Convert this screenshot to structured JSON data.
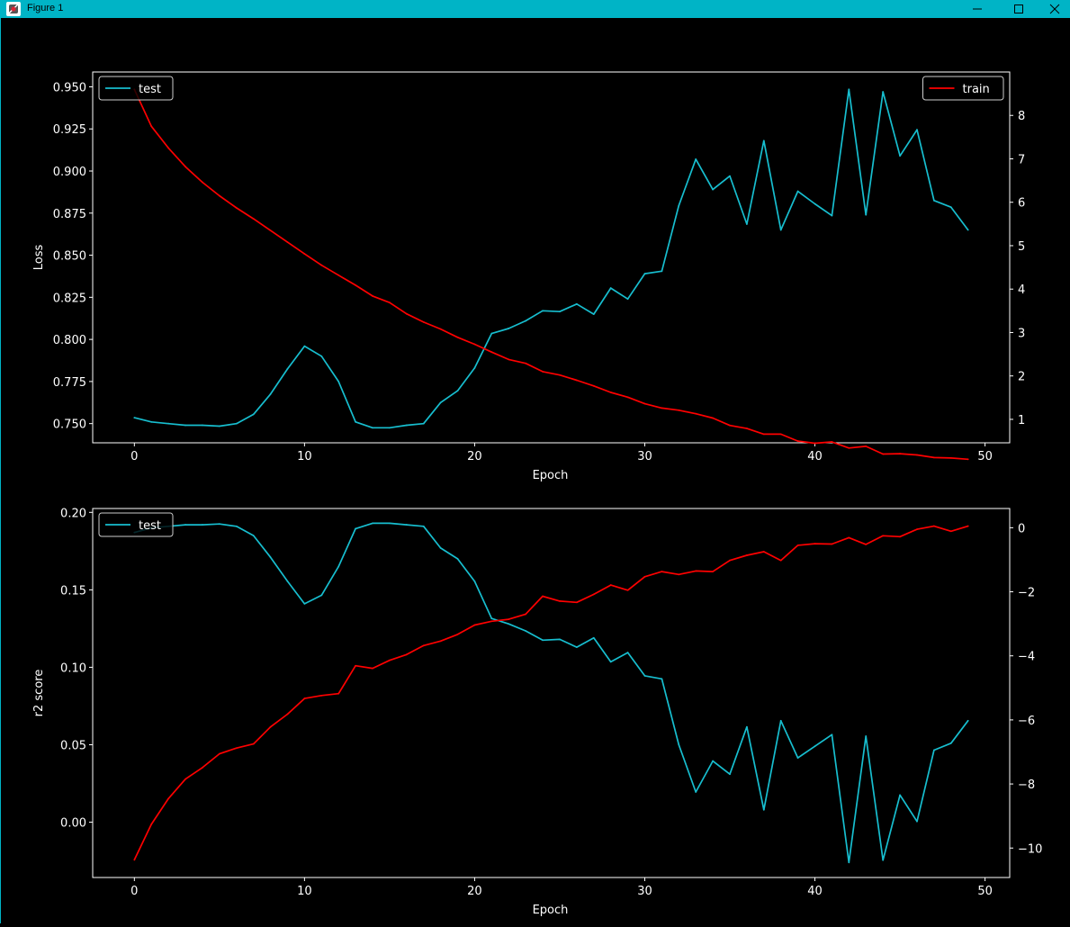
{
  "window": {
    "title": "Figure 1",
    "minimize_icon": "minimize-icon",
    "maximize_icon": "maximize-icon",
    "close_icon": "close-icon"
  },
  "colors": {
    "background": "#000000",
    "test": "#17becf",
    "train": "#ff0000",
    "titlebar": "#00b4c6"
  },
  "chart_data": [
    {
      "type": "line",
      "xlabel": "Epoch",
      "ylabel": "Loss",
      "xlim": [
        -2.45,
        51.45
      ],
      "x_ticks": [
        0,
        10,
        20,
        30,
        40,
        50
      ],
      "x_tick_labels": [
        "0",
        "10",
        "20",
        "30",
        "40",
        "50"
      ],
      "left_axis": {
        "ylim": [
          0.7386,
          0.9588
        ],
        "ticks": [
          0.75,
          0.775,
          0.8,
          0.825,
          0.85,
          0.875,
          0.9,
          0.925,
          0.95
        ],
        "tick_labels": [
          "0.750",
          "0.775",
          "0.800",
          "0.825",
          "0.850",
          "0.875",
          "0.900",
          "0.925",
          "0.950"
        ]
      },
      "right_axis": {
        "ylim": [
          0.46,
          9.0
        ],
        "ticks": [
          1,
          2,
          3,
          4,
          5,
          6,
          7,
          8
        ],
        "tick_labels": [
          "1",
          "2",
          "3",
          "4",
          "5",
          "6",
          "7",
          "8"
        ]
      },
      "series": [
        {
          "name": "test",
          "axis": "left",
          "color": "#17becf",
          "legend": "upper left",
          "x": [
            0,
            1,
            2,
            3,
            4,
            5,
            6,
            7,
            8,
            9,
            10,
            11,
            12,
            13,
            14,
            15,
            16,
            17,
            18,
            19,
            20,
            21,
            22,
            23,
            24,
            25,
            26,
            27,
            28,
            29,
            30,
            31,
            32,
            33,
            34,
            35,
            36,
            37,
            38,
            39,
            40,
            41,
            42,
            43,
            44,
            45,
            46,
            47,
            48,
            49
          ],
          "y": [
            0.7535,
            0.751,
            0.75,
            0.749,
            0.749,
            0.7485,
            0.75,
            0.7555,
            0.7675,
            0.7825,
            0.796,
            0.79,
            0.775,
            0.751,
            0.7475,
            0.7475,
            0.749,
            0.75,
            0.7625,
            0.7695,
            0.783,
            0.8035,
            0.8065,
            0.811,
            0.817,
            0.8165,
            0.821,
            0.815,
            0.8305,
            0.824,
            0.839,
            0.8405,
            0.8795,
            0.907,
            0.889,
            0.897,
            0.8685,
            0.918,
            0.865,
            0.888,
            0.8805,
            0.8735,
            0.9485,
            0.874,
            0.947,
            0.909,
            0.9245,
            0.8825,
            0.8785,
            0.865
          ]
        },
        {
          "name": "train",
          "axis": "right",
          "color": "#ff0000",
          "legend": "upper right",
          "x": [
            0,
            1,
            2,
            3,
            4,
            5,
            6,
            7,
            8,
            9,
            10,
            11,
            12,
            13,
            14,
            15,
            16,
            17,
            18,
            19,
            20,
            21,
            22,
            23,
            24,
            25,
            26,
            27,
            28,
            29,
            30,
            31,
            32,
            33,
            34,
            35,
            36,
            37,
            38,
            39,
            40,
            41,
            42,
            43,
            44,
            45,
            46,
            47,
            48,
            49
          ],
          "y": [
            8.6,
            7.75,
            7.25,
            6.82,
            6.46,
            6.15,
            5.87,
            5.62,
            5.35,
            5.08,
            4.81,
            4.55,
            4.32,
            4.09,
            3.84,
            3.69,
            3.43,
            3.24,
            3.08,
            2.89,
            2.73,
            2.55,
            2.38,
            2.29,
            2.1,
            2.02,
            1.9,
            1.77,
            1.62,
            1.51,
            1.36,
            1.26,
            1.21,
            1.13,
            1.03,
            0.86,
            0.79,
            0.66,
            0.66,
            0.5,
            0.45,
            0.48,
            0.34,
            0.38,
            0.2,
            0.21,
            0.18,
            0.12,
            0.11,
            0.08
          ]
        }
      ]
    },
    {
      "type": "line",
      "xlabel": "Epoch",
      "ylabel": "r2 score",
      "xlim": [
        -2.45,
        51.45
      ],
      "x_ticks": [
        0,
        10,
        20,
        30,
        40,
        50
      ],
      "x_tick_labels": [
        "0",
        "10",
        "20",
        "30",
        "40",
        "50"
      ],
      "left_axis": {
        "ylim": [
          -0.0357,
          0.2025
        ],
        "ticks": [
          0.0,
          0.05,
          0.1,
          0.15,
          0.2
        ],
        "tick_labels": [
          "0.00",
          "0.05",
          "0.10",
          "0.15",
          "0.20"
        ]
      },
      "right_axis": {
        "ylim": [
          -10.92,
          0.6
        ],
        "ticks": [
          -10,
          -8,
          -6,
          -4,
          -2,
          0
        ],
        "tick_labels": [
          "−10",
          "−8",
          "−6",
          "−4",
          "−2",
          "0"
        ]
      },
      "series": [
        {
          "name": "test",
          "axis": "left",
          "color": "#17becf",
          "legend": "upper left",
          "x": [
            0,
            1,
            2,
            3,
            4,
            5,
            6,
            7,
            8,
            9,
            10,
            11,
            12,
            13,
            14,
            15,
            16,
            17,
            18,
            19,
            20,
            21,
            22,
            23,
            24,
            25,
            26,
            27,
            28,
            29,
            30,
            31,
            32,
            33,
            34,
            35,
            36,
            37,
            38,
            39,
            40,
            41,
            42,
            43,
            44,
            45,
            46,
            47,
            48,
            49
          ],
          "y": [
            0.187,
            0.19,
            0.191,
            0.192,
            0.192,
            0.1925,
            0.191,
            0.185,
            0.171,
            0.1555,
            0.141,
            0.1465,
            0.165,
            0.1895,
            0.193,
            0.193,
            0.192,
            0.191,
            0.177,
            0.17,
            0.1555,
            0.1315,
            0.128,
            0.1235,
            0.1175,
            0.118,
            0.113,
            0.119,
            0.1035,
            0.1095,
            0.0945,
            0.0925,
            0.05,
            0.0195,
            0.0395,
            0.031,
            0.0615,
            0.008,
            0.0655,
            0.0415,
            0.049,
            0.0565,
            -0.026,
            0.0555,
            -0.0245,
            0.0175,
            0.0005,
            0.0465,
            0.051,
            0.0655
          ]
        },
        {
          "name": "train",
          "axis": "right",
          "color": "#ff0000",
          "x": [
            0,
            1,
            2,
            3,
            4,
            5,
            6,
            7,
            8,
            9,
            10,
            11,
            12,
            13,
            14,
            15,
            16,
            17,
            18,
            19,
            20,
            21,
            22,
            23,
            24,
            25,
            26,
            27,
            28,
            29,
            30,
            31,
            32,
            33,
            34,
            35,
            36,
            37,
            38,
            39,
            40,
            41,
            42,
            43,
            44,
            45,
            46,
            47,
            48,
            49
          ],
          "y": [
            -10.37,
            -9.26,
            -8.46,
            -7.85,
            -7.49,
            -7.06,
            -6.88,
            -6.75,
            -6.22,
            -5.82,
            -5.33,
            -5.24,
            -5.18,
            -4.31,
            -4.39,
            -4.14,
            -3.96,
            -3.68,
            -3.54,
            -3.33,
            -3.04,
            -2.92,
            -2.86,
            -2.7,
            -2.14,
            -2.29,
            -2.33,
            -2.08,
            -1.79,
            -1.95,
            -1.53,
            -1.37,
            -1.46,
            -1.35,
            -1.37,
            -1.02,
            -0.86,
            -0.75,
            -1.02,
            -0.55,
            -0.5,
            -0.51,
            -0.31,
            -0.52,
            -0.25,
            -0.28,
            -0.05,
            0.05,
            -0.11,
            0.05
          ]
        }
      ]
    }
  ]
}
